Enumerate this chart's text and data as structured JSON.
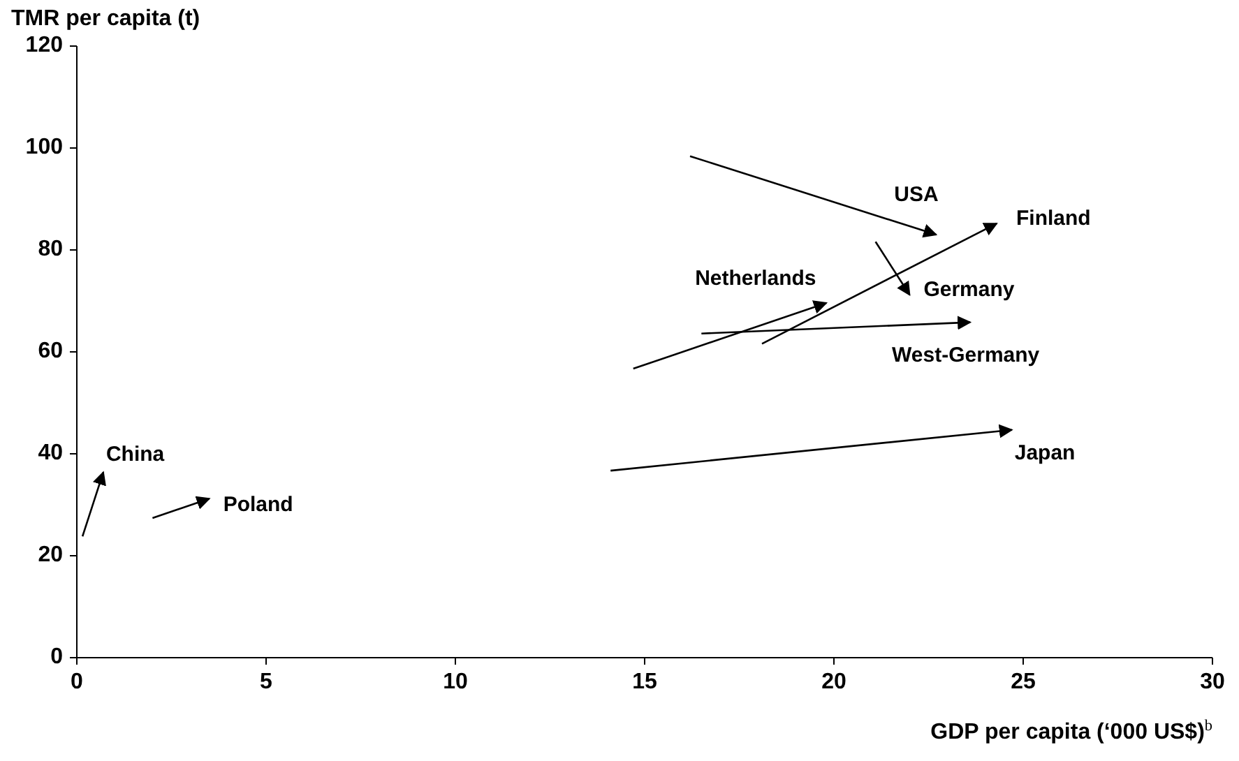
{
  "chart_data": {
    "type": "line",
    "xlabel": "GDP per capita (‘000 US$)$^{b}$",
    "ylabel": "TMR per capita (t)",
    "xlim": [
      0,
      30
    ],
    "xticks": [
      0,
      5,
      10,
      15,
      20,
      25,
      30
    ],
    "ylim": [
      0,
      120
    ],
    "yticks": [
      0,
      20,
      40,
      60,
      80,
      100,
      120
    ],
    "grid": false,
    "legend": false,
    "series": [
      {
        "name": "USA",
        "color": "#000000",
        "x": [
          16.2,
          22.7
        ],
        "values": [
          98.4,
          83.0
        ]
      },
      {
        "name": "Finland",
        "color": "#000000",
        "x": [
          18.1,
          24.3
        ],
        "values": [
          61.6,
          85.2
        ]
      },
      {
        "name": "Germany",
        "color": "#000000",
        "x": [
          21.1,
          22.0
        ],
        "values": [
          81.6,
          71.2
        ]
      },
      {
        "name": "Netherlands",
        "color": "#000000",
        "x": [
          14.7,
          19.8
        ],
        "values": [
          56.7,
          69.6
        ]
      },
      {
        "name": "West-Germany",
        "color": "#000000",
        "x": [
          16.5,
          23.6
        ],
        "values": [
          63.6,
          65.8
        ]
      },
      {
        "name": "Japan",
        "color": "#000000",
        "x": [
          14.1,
          24.7
        ],
        "values": [
          36.7,
          44.7
        ]
      },
      {
        "name": "China",
        "color": "#000000",
        "x": [
          0.15,
          0.7
        ],
        "values": [
          23.8,
          36.4
        ]
      },
      {
        "name": "Poland",
        "color": "#000000",
        "x": [
          2.0,
          3.5
        ],
        "values": [
          27.4,
          31.2
        ]
      }
    ]
  }
}
